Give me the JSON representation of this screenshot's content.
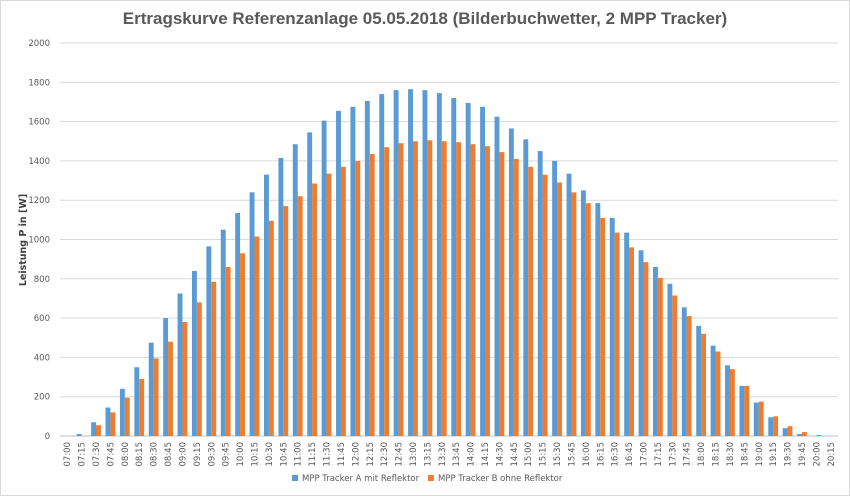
{
  "chart_data": {
    "type": "bar",
    "title": "Ertragskurve Referenzanlage 05.05.2018 (Bilderbuchwetter, 2 MPP Tracker)",
    "xlabel": "",
    "ylabel": "Leistung P in [W]",
    "ylim": [
      0,
      2000
    ],
    "ytick_step": 200,
    "grid": true,
    "legend_position": "bottom",
    "categories": [
      "07:00",
      "07:15",
      "07:30",
      "07:45",
      "08:00",
      "08:15",
      "08:30",
      "08:45",
      "09:00",
      "09:15",
      "09:30",
      "09:45",
      "10:00",
      "10:15",
      "10:30",
      "10:45",
      "11:00",
      "11:15",
      "11:30",
      "11:45",
      "12:00",
      "12:15",
      "12:30",
      "12:45",
      "13:00",
      "13:15",
      "13:30",
      "13:45",
      "14:00",
      "14:15",
      "14:30",
      "14:45",
      "15:00",
      "15:15",
      "15:30",
      "15:45",
      "16:00",
      "16:15",
      "16:30",
      "16:45",
      "17:00",
      "17:15",
      "17:30",
      "17:45",
      "18:00",
      "18:15",
      "18:30",
      "18:45",
      "19:00",
      "19:15",
      "19:30",
      "19:45",
      "20:00",
      "20:15"
    ],
    "series": [
      {
        "name": "MPP Tracker A mit Reflektor",
        "color": "#5b9bd5",
        "values": [
          0,
          10,
          70,
          145,
          240,
          350,
          475,
          600,
          725,
          840,
          965,
          1050,
          1135,
          1240,
          1330,
          1415,
          1485,
          1545,
          1605,
          1655,
          1675,
          1705,
          1740,
          1760,
          1765,
          1760,
          1745,
          1720,
          1695,
          1675,
          1625,
          1565,
          1510,
          1450,
          1400,
          1335,
          1250,
          1185,
          1110,
          1035,
          945,
          860,
          775,
          655,
          560,
          460,
          360,
          255,
          170,
          95,
          40,
          10,
          0,
          0
        ]
      },
      {
        "name": "MPP Tracker B ohne Reflektor",
        "color": "#ed7d31",
        "values": [
          0,
          0,
          55,
          120,
          195,
          290,
          395,
          480,
          580,
          680,
          785,
          860,
          930,
          1015,
          1095,
          1170,
          1220,
          1285,
          1335,
          1370,
          1400,
          1435,
          1470,
          1490,
          1500,
          1505,
          1500,
          1495,
          1485,
          1475,
          1445,
          1410,
          1370,
          1330,
          1290,
          1240,
          1185,
          1110,
          1035,
          960,
          885,
          805,
          715,
          610,
          520,
          430,
          340,
          255,
          175,
          100,
          50,
          20,
          5,
          0
        ]
      }
    ]
  }
}
